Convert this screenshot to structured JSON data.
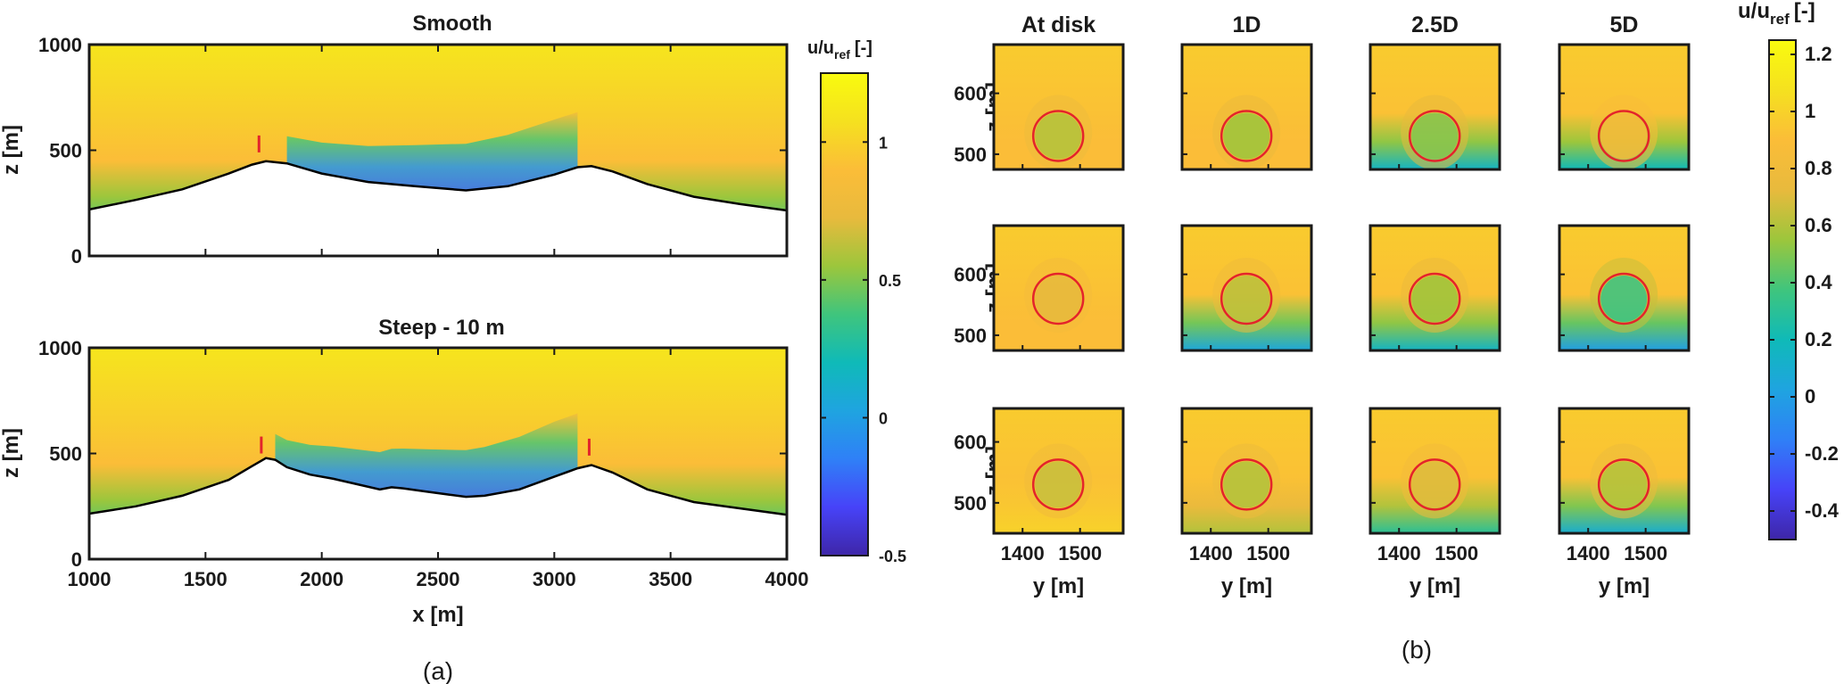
{
  "colormap": [
    "#3e26a8",
    "#4743f8",
    "#2f80f7",
    "#1fa4e0",
    "#0fbab8",
    "#3fc57d",
    "#9cc63c",
    "#e8ba3d",
    "#fbbd38",
    "#f5e11f",
    "#f9fb0e"
  ],
  "turbine_color": "#e3242b",
  "panel_a": {
    "label": "(a)",
    "xlabel": "x [m]",
    "ylabel": "z [m]",
    "x_ticks": [
      "1000",
      "1500",
      "2000",
      "2500",
      "3000",
      "3500",
      "4000"
    ],
    "y_ticks": [
      "0",
      "500",
      "1000"
    ],
    "xlim": [
      1000,
      4000
    ],
    "ylim": [
      0,
      1000
    ],
    "colorbar": {
      "title_base": "u/u",
      "title_sub": "ref",
      "title_unit": "[-]",
      "range": [
        -0.5,
        1.25
      ],
      "ticks": [
        "-0.5",
        "0",
        "0.5",
        "1"
      ]
    },
    "subplots": [
      {
        "title": "Smooth",
        "terrain_x": [
          1000,
          1200,
          1400,
          1600,
          1700,
          1760,
          1850,
          2000,
          2200,
          2400,
          2620,
          2800,
          3000,
          3100,
          3160,
          3250,
          3400,
          3600,
          3800,
          4000
        ],
        "terrain_z": [
          220,
          265,
          315,
          390,
          432,
          448,
          438,
          390,
          350,
          330,
          310,
          330,
          385,
          420,
          425,
          400,
          340,
          280,
          245,
          215
        ],
        "turbines": [
          {
            "x": 1730,
            "z_bottom": 490,
            "z_top": 570
          }
        ]
      },
      {
        "title": "Steep - 10 m",
        "terrain_x": [
          1000,
          1200,
          1400,
          1600,
          1700,
          1760,
          1800,
          1850,
          1950,
          2050,
          2150,
          2250,
          2300,
          2350,
          2450,
          2550,
          2620,
          2700,
          2850,
          3000,
          3100,
          3160,
          3250,
          3400,
          3600,
          3800,
          4000
        ],
        "terrain_z": [
          215,
          250,
          300,
          375,
          440,
          478,
          470,
          435,
          400,
          380,
          355,
          330,
          340,
          335,
          320,
          305,
          295,
          300,
          330,
          390,
          430,
          445,
          410,
          330,
          270,
          240,
          210
        ],
        "turbines": [
          {
            "x": 1740,
            "z_bottom": 500,
            "z_top": 580
          },
          {
            "x": 3150,
            "z_bottom": 490,
            "z_top": 570
          }
        ]
      }
    ]
  },
  "panel_b": {
    "label": "(b)",
    "columns": [
      "At disk",
      "1D",
      "2.5D",
      "5D"
    ],
    "xlabel": "y [m]",
    "ylabel": "z [m]",
    "x_ticks": [
      "1400",
      "1500"
    ],
    "row_y_ticks": [
      [
        "500",
        "600"
      ],
      [
        "500",
        "600"
      ],
      [
        "500",
        "600"
      ]
    ],
    "colorbar": {
      "title_base": "u/u",
      "title_sub": "ref",
      "title_unit": "[-]",
      "range": [
        -0.5,
        1.25
      ],
      "ticks": [
        "-0.4",
        "-0.2",
        "0",
        "0.2",
        "0.4",
        "0.6",
        "0.8",
        "1",
        "1.2"
      ]
    },
    "rows": [
      {
        "hub_z": 530,
        "ylim": [
          475,
          680
        ],
        "disk_u": [
          0.6,
          0.55,
          0.5,
          0.8
        ],
        "bottom_u": [
          0.9,
          0.9,
          0.15,
          0.2
        ]
      },
      {
        "hub_z": 560,
        "ylim": [
          475,
          680
        ],
        "disk_u": [
          0.72,
          0.62,
          0.55,
          0.35
        ],
        "bottom_u": [
          0.9,
          0.05,
          0.15,
          0.0
        ]
      },
      {
        "hub_z": 530,
        "ylim": [
          450,
          655
        ],
        "disk_u": [
          0.65,
          0.6,
          0.7,
          0.6
        ],
        "bottom_u": [
          1.0,
          0.6,
          0.3,
          0.1
        ]
      }
    ]
  }
}
